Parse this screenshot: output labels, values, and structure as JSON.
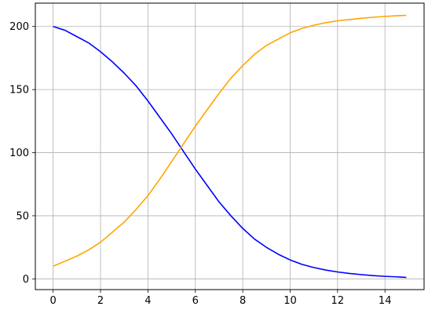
{
  "chart_data": {
    "type": "line",
    "title": "",
    "xlabel": "",
    "ylabel": "",
    "xlim": [
      -0.75,
      15.65
    ],
    "ylim": [
      -8.5,
      218.5
    ],
    "xticks": [
      0,
      2,
      4,
      6,
      8,
      10,
      12,
      14
    ],
    "yticks": [
      0,
      50,
      100,
      150,
      200
    ],
    "grid": true,
    "legend": "none",
    "series": [
      {
        "color": "#0000ff",
        "x": [
          0,
          0.5,
          1,
          1.5,
          2,
          2.5,
          3,
          3.5,
          4,
          4.5,
          5,
          5.5,
          6,
          6.5,
          7,
          7.5,
          8,
          8.5,
          9,
          9.5,
          10,
          10.5,
          11,
          11.5,
          12,
          12.5,
          13,
          13.5,
          14,
          14.5,
          14.9
        ],
        "y": [
          200,
          197,
          192,
          187,
          180,
          172,
          163,
          153,
          141,
          128,
          115,
          101,
          87,
          74,
          61,
          50,
          40,
          31.5,
          25,
          19.5,
          15,
          11.5,
          9,
          7,
          5.5,
          4.3,
          3.4,
          2.6,
          2,
          1.6,
          1.2
        ]
      },
      {
        "color": "#ffa500",
        "x": [
          0,
          0.5,
          1,
          1.5,
          2,
          2.5,
          3,
          3.5,
          4,
          4.5,
          5,
          5.5,
          6,
          6.5,
          7,
          7.5,
          8,
          8.5,
          9,
          9.5,
          10,
          10.5,
          11,
          11.5,
          12,
          12.5,
          13,
          13.5,
          14,
          14.5,
          14.9
        ],
        "y": [
          10,
          14,
          18,
          23,
          29,
          37,
          45,
          55,
          66,
          79,
          93,
          107,
          121,
          134,
          147,
          159,
          169,
          178,
          185,
          190,
          195,
          198.5,
          201,
          203,
          204.5,
          205.5,
          206.5,
          207.3,
          208,
          208.5,
          208.8
        ]
      }
    ]
  }
}
